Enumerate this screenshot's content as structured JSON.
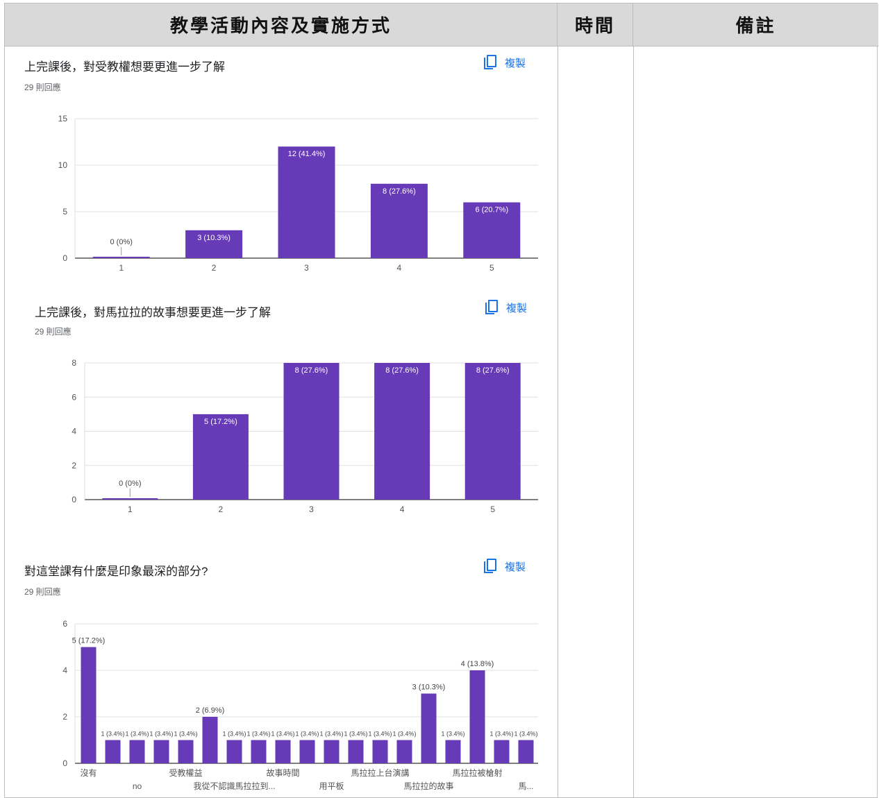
{
  "table": {
    "headers": {
      "activity": "教學活動內容及實施方式",
      "time": "時間",
      "note": "備註"
    }
  },
  "copy_label": "複製",
  "colors": {
    "bar": "#673ab7",
    "grid": "#e0e0e0",
    "axis": "#333333",
    "header_bg": "#d9d9d9"
  },
  "charts": [
    {
      "title": "上完課後，對受教權想要更進一步了解",
      "responses": "29 則回應"
    },
    {
      "title": "上完課後，對馬拉拉的故事想要更進一步了解",
      "responses": "29 則回應"
    },
    {
      "title": "對這堂課有什麼是印象最深的部分?",
      "responses": "29 則回應"
    }
  ],
  "chart_data": [
    {
      "type": "bar",
      "title": "上完課後，對受教權想要更進一步了解",
      "categories": [
        "1",
        "2",
        "3",
        "4",
        "5"
      ],
      "values": [
        0,
        3,
        12,
        8,
        6
      ],
      "labels": [
        "0 (0%)",
        "3 (10.3%)",
        "12 (41.4%)",
        "8 (27.6%)",
        "6 (20.7%)"
      ],
      "yticks": [
        0,
        5,
        10,
        15
      ],
      "ylim": [
        0,
        15
      ],
      "grid": true
    },
    {
      "type": "bar",
      "title": "上完課後，對馬拉拉的故事想要更進一步了解",
      "categories": [
        "1",
        "2",
        "3",
        "4",
        "5"
      ],
      "values": [
        0,
        5,
        8,
        8,
        8
      ],
      "labels": [
        "0 (0%)",
        "5 (17.2%)",
        "8 (27.6%)",
        "8 (27.6%)",
        "8 (27.6%)"
      ],
      "yticks": [
        0,
        2,
        4,
        6,
        8
      ],
      "ylim": [
        0,
        8
      ],
      "grid": true
    },
    {
      "type": "bar",
      "title": "對這堂課有什麼是印象最深的部分?",
      "categories": [
        "沒有",
        "",
        "no",
        "",
        "受教權益",
        "",
        "我從不認識馬拉拉到...",
        "",
        "故事時間",
        "",
        "用平板",
        "",
        "馬拉拉上台演講",
        "",
        "馬拉拉的故事",
        "",
        "馬拉拉被槍射",
        "",
        "馬..."
      ],
      "values": [
        5,
        1,
        1,
        1,
        1,
        2,
        1,
        1,
        1,
        1,
        1,
        1,
        1,
        1,
        3,
        1,
        4,
        1,
        1
      ],
      "labels": [
        "5 (17.2%)",
        "1 (3.4%)",
        "1 (3.4%)",
        "1 (3.4%)",
        "1 (3.4%)",
        "2 (6.9%)",
        "1 (3.4%)",
        "1 (3.4%)",
        "1 (3.4%)",
        "1 (3.4%)",
        "1 (3.4%)",
        "1 (3.4%)",
        "1 (3.4%)",
        "1 (3.4%)",
        "3 (10.3%)",
        "1 (3.4%)",
        "4 (13.8%)",
        "1 (3.4%)",
        "1 (3.4%)"
      ],
      "yticks": [
        0,
        2,
        4,
        6
      ],
      "ylim": [
        0,
        6
      ],
      "grid": true
    }
  ]
}
